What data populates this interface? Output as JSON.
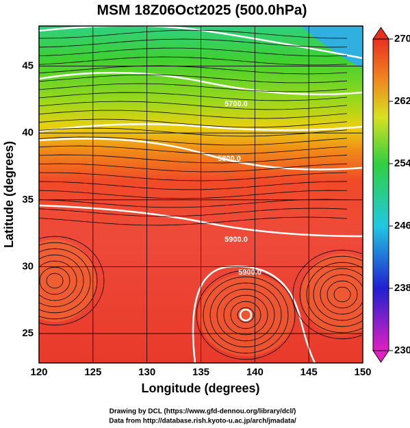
{
  "title": "MSM 18Z06Oct2025 (500.0hPa)",
  "map": {
    "xlabel": "Longitude (degrees)",
    "ylabel": "Latitude  (degrees)",
    "xlim": [
      120,
      150
    ],
    "ylim": [
      22.8,
      48
    ],
    "xticks": [
      120,
      125,
      130,
      135,
      140,
      145,
      150
    ],
    "yticks": [
      25,
      30,
      35,
      40,
      45
    ]
  },
  "colorbar": {
    "lim": [
      230,
      270
    ],
    "ticks": [
      230,
      238,
      246,
      254,
      262,
      270
    ]
  },
  "contour_labels": [
    "5700.0",
    "5800.0",
    "5900.0",
    "5900.0"
  ],
  "footer": [
    "Drawing by DCL (https://www.gfd-dennou.org/library/dcl/)",
    "Data from http://database.rish.kyoto-u.ac.jp/arch/jmadata/"
  ]
}
